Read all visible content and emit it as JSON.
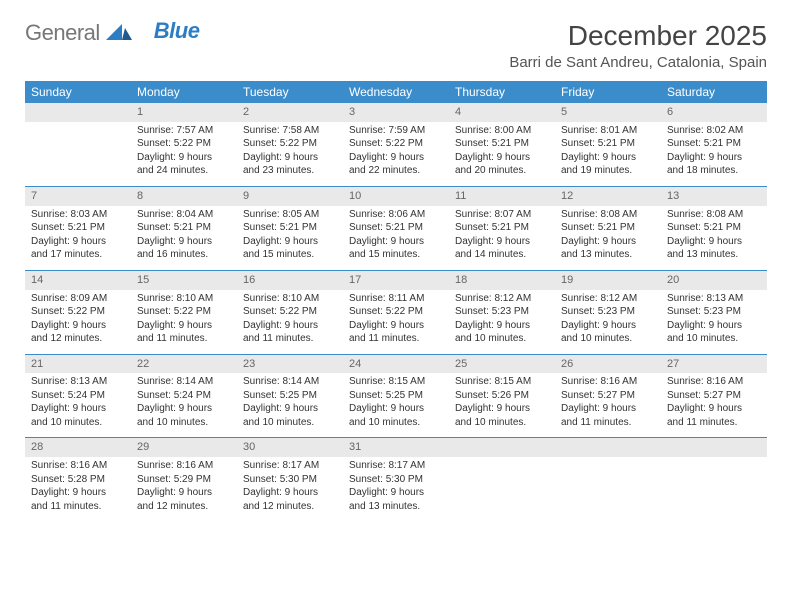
{
  "logo": {
    "text1": "General",
    "text2": "Blue"
  },
  "title": "December 2025",
  "location": "Barri de Sant Andreu, Catalonia, Spain",
  "colors": {
    "header_bg": "#3b8ccb",
    "header_text": "#ffffff",
    "daynum_bg": "#e9e9e9",
    "daynum_text": "#666666",
    "row_border": "#3b8ccb",
    "body_text": "#333333",
    "logo_gray": "#777777",
    "logo_blue": "#2d7dc4"
  },
  "weekdays": [
    "Sunday",
    "Monday",
    "Tuesday",
    "Wednesday",
    "Thursday",
    "Friday",
    "Saturday"
  ],
  "weeks": [
    [
      null,
      {
        "n": "1",
        "sr": "Sunrise: 7:57 AM",
        "ss": "Sunset: 5:22 PM",
        "dl": "Daylight: 9 hours and 24 minutes."
      },
      {
        "n": "2",
        "sr": "Sunrise: 7:58 AM",
        "ss": "Sunset: 5:22 PM",
        "dl": "Daylight: 9 hours and 23 minutes."
      },
      {
        "n": "3",
        "sr": "Sunrise: 7:59 AM",
        "ss": "Sunset: 5:22 PM",
        "dl": "Daylight: 9 hours and 22 minutes."
      },
      {
        "n": "4",
        "sr": "Sunrise: 8:00 AM",
        "ss": "Sunset: 5:21 PM",
        "dl": "Daylight: 9 hours and 20 minutes."
      },
      {
        "n": "5",
        "sr": "Sunrise: 8:01 AM",
        "ss": "Sunset: 5:21 PM",
        "dl": "Daylight: 9 hours and 19 minutes."
      },
      {
        "n": "6",
        "sr": "Sunrise: 8:02 AM",
        "ss": "Sunset: 5:21 PM",
        "dl": "Daylight: 9 hours and 18 minutes."
      }
    ],
    [
      {
        "n": "7",
        "sr": "Sunrise: 8:03 AM",
        "ss": "Sunset: 5:21 PM",
        "dl": "Daylight: 9 hours and 17 minutes."
      },
      {
        "n": "8",
        "sr": "Sunrise: 8:04 AM",
        "ss": "Sunset: 5:21 PM",
        "dl": "Daylight: 9 hours and 16 minutes."
      },
      {
        "n": "9",
        "sr": "Sunrise: 8:05 AM",
        "ss": "Sunset: 5:21 PM",
        "dl": "Daylight: 9 hours and 15 minutes."
      },
      {
        "n": "10",
        "sr": "Sunrise: 8:06 AM",
        "ss": "Sunset: 5:21 PM",
        "dl": "Daylight: 9 hours and 15 minutes."
      },
      {
        "n": "11",
        "sr": "Sunrise: 8:07 AM",
        "ss": "Sunset: 5:21 PM",
        "dl": "Daylight: 9 hours and 14 minutes."
      },
      {
        "n": "12",
        "sr": "Sunrise: 8:08 AM",
        "ss": "Sunset: 5:21 PM",
        "dl": "Daylight: 9 hours and 13 minutes."
      },
      {
        "n": "13",
        "sr": "Sunrise: 8:08 AM",
        "ss": "Sunset: 5:21 PM",
        "dl": "Daylight: 9 hours and 13 minutes."
      }
    ],
    [
      {
        "n": "14",
        "sr": "Sunrise: 8:09 AM",
        "ss": "Sunset: 5:22 PM",
        "dl": "Daylight: 9 hours and 12 minutes."
      },
      {
        "n": "15",
        "sr": "Sunrise: 8:10 AM",
        "ss": "Sunset: 5:22 PM",
        "dl": "Daylight: 9 hours and 11 minutes."
      },
      {
        "n": "16",
        "sr": "Sunrise: 8:10 AM",
        "ss": "Sunset: 5:22 PM",
        "dl": "Daylight: 9 hours and 11 minutes."
      },
      {
        "n": "17",
        "sr": "Sunrise: 8:11 AM",
        "ss": "Sunset: 5:22 PM",
        "dl": "Daylight: 9 hours and 11 minutes."
      },
      {
        "n": "18",
        "sr": "Sunrise: 8:12 AM",
        "ss": "Sunset: 5:23 PM",
        "dl": "Daylight: 9 hours and 10 minutes."
      },
      {
        "n": "19",
        "sr": "Sunrise: 8:12 AM",
        "ss": "Sunset: 5:23 PM",
        "dl": "Daylight: 9 hours and 10 minutes."
      },
      {
        "n": "20",
        "sr": "Sunrise: 8:13 AM",
        "ss": "Sunset: 5:23 PM",
        "dl": "Daylight: 9 hours and 10 minutes."
      }
    ],
    [
      {
        "n": "21",
        "sr": "Sunrise: 8:13 AM",
        "ss": "Sunset: 5:24 PM",
        "dl": "Daylight: 9 hours and 10 minutes."
      },
      {
        "n": "22",
        "sr": "Sunrise: 8:14 AM",
        "ss": "Sunset: 5:24 PM",
        "dl": "Daylight: 9 hours and 10 minutes."
      },
      {
        "n": "23",
        "sr": "Sunrise: 8:14 AM",
        "ss": "Sunset: 5:25 PM",
        "dl": "Daylight: 9 hours and 10 minutes."
      },
      {
        "n": "24",
        "sr": "Sunrise: 8:15 AM",
        "ss": "Sunset: 5:25 PM",
        "dl": "Daylight: 9 hours and 10 minutes."
      },
      {
        "n": "25",
        "sr": "Sunrise: 8:15 AM",
        "ss": "Sunset: 5:26 PM",
        "dl": "Daylight: 9 hours and 10 minutes."
      },
      {
        "n": "26",
        "sr": "Sunrise: 8:16 AM",
        "ss": "Sunset: 5:27 PM",
        "dl": "Daylight: 9 hours and 11 minutes."
      },
      {
        "n": "27",
        "sr": "Sunrise: 8:16 AM",
        "ss": "Sunset: 5:27 PM",
        "dl": "Daylight: 9 hours and 11 minutes."
      }
    ],
    [
      {
        "n": "28",
        "sr": "Sunrise: 8:16 AM",
        "ss": "Sunset: 5:28 PM",
        "dl": "Daylight: 9 hours and 11 minutes."
      },
      {
        "n": "29",
        "sr": "Sunrise: 8:16 AM",
        "ss": "Sunset: 5:29 PM",
        "dl": "Daylight: 9 hours and 12 minutes."
      },
      {
        "n": "30",
        "sr": "Sunrise: 8:17 AM",
        "ss": "Sunset: 5:30 PM",
        "dl": "Daylight: 9 hours and 12 minutes."
      },
      {
        "n": "31",
        "sr": "Sunrise: 8:17 AM",
        "ss": "Sunset: 5:30 PM",
        "dl": "Daylight: 9 hours and 13 minutes."
      },
      null,
      null,
      null
    ]
  ]
}
